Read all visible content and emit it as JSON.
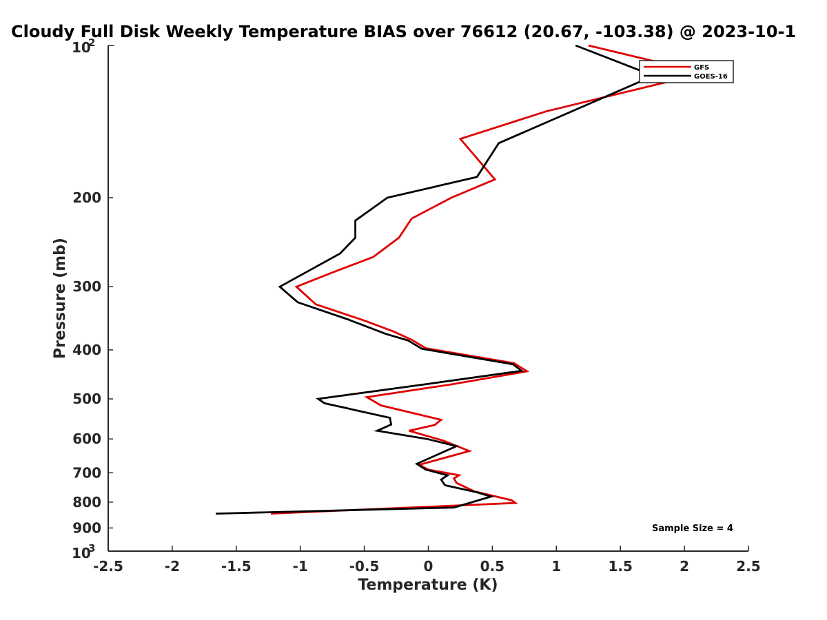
{
  "chart_data": {
    "type": "line",
    "title": "Cloudy Full Disk Weekly Temperature BIAS over 76612 (20.67, -103.38) @ 2023-10-1",
    "xlabel": "Temperature (K)",
    "ylabel": "Pressure (mb)",
    "xlim": [
      -2.5,
      2.5
    ],
    "ylim": [
      100,
      1000
    ],
    "yscale": "log",
    "y_reversed": true,
    "x_ticks": [
      "-2.5",
      "-2",
      "-1.5",
      "-1",
      "-0.5",
      "0",
      "0.5",
      "1",
      "1.5",
      "2",
      "2.5"
    ],
    "y_ticks": [
      "200",
      "300",
      "400",
      "500",
      "600",
      "700",
      "800",
      "900"
    ],
    "y_tick_top": {
      "base": "10",
      "exp": "2"
    },
    "y_tick_bottom": {
      "base": "10",
      "exp": "3"
    },
    "legend_location": "top-right",
    "annotation": "Sample Size = 4",
    "series": [
      {
        "name": "GFS",
        "color": "#e00000",
        "points": [
          [
            1.25,
            100
          ],
          [
            1.8,
            108
          ],
          [
            2.05,
            115
          ],
          [
            0.92,
            135
          ],
          [
            0.25,
            153
          ],
          [
            0.52,
            184
          ],
          [
            0.18,
            200
          ],
          [
            -0.13,
            220
          ],
          [
            -0.23,
            240
          ],
          [
            -0.43,
            262
          ],
          [
            -0.73,
            280
          ],
          [
            -1.03,
            300
          ],
          [
            -0.88,
            325
          ],
          [
            -0.5,
            350
          ],
          [
            -0.27,
            368
          ],
          [
            -0.13,
            382
          ],
          [
            -0.02,
            397
          ],
          [
            0.67,
            425
          ],
          [
            0.77,
            441
          ],
          [
            0.18,
            468
          ],
          [
            -0.48,
            496
          ],
          [
            -0.37,
            515
          ],
          [
            0.1,
            550
          ],
          [
            0.05,
            563
          ],
          [
            -0.15,
            578
          ],
          [
            0.12,
            605
          ],
          [
            0.32,
            634
          ],
          [
            -0.07,
            675
          ],
          [
            0.0,
            690
          ],
          [
            0.24,
            708
          ],
          [
            0.2,
            718
          ],
          [
            0.22,
            733
          ],
          [
            0.36,
            762
          ],
          [
            0.65,
            793
          ],
          [
            0.68,
            803
          ],
          [
            -1.23,
            843
          ]
        ]
      },
      {
        "name": "GOES-16",
        "color": "#000000",
        "points": [
          [
            1.15,
            100
          ],
          [
            1.73,
            114
          ],
          [
            1.65,
            118
          ],
          [
            0.55,
            156
          ],
          [
            0.38,
            182
          ],
          [
            -0.32,
            200
          ],
          [
            -0.57,
            222
          ],
          [
            -0.57,
            240
          ],
          [
            -0.69,
            258
          ],
          [
            -1.16,
            300
          ],
          [
            -1.02,
            322
          ],
          [
            -0.63,
            348
          ],
          [
            -0.33,
            372
          ],
          [
            -0.16,
            383
          ],
          [
            -0.05,
            398
          ],
          [
            0.66,
            427
          ],
          [
            0.73,
            440
          ],
          [
            -0.03,
            468
          ],
          [
            -0.86,
            500
          ],
          [
            -0.81,
            510
          ],
          [
            -0.3,
            545
          ],
          [
            -0.29,
            562
          ],
          [
            -0.4,
            578
          ],
          [
            -0.01,
            600
          ],
          [
            0.22,
            620
          ],
          [
            -0.09,
            672
          ],
          [
            -0.02,
            690
          ],
          [
            0.15,
            708
          ],
          [
            0.1,
            722
          ],
          [
            0.13,
            741
          ],
          [
            0.38,
            765
          ],
          [
            0.49,
            780
          ],
          [
            0.2,
            820
          ],
          [
            -1.66,
            843
          ]
        ]
      }
    ]
  }
}
